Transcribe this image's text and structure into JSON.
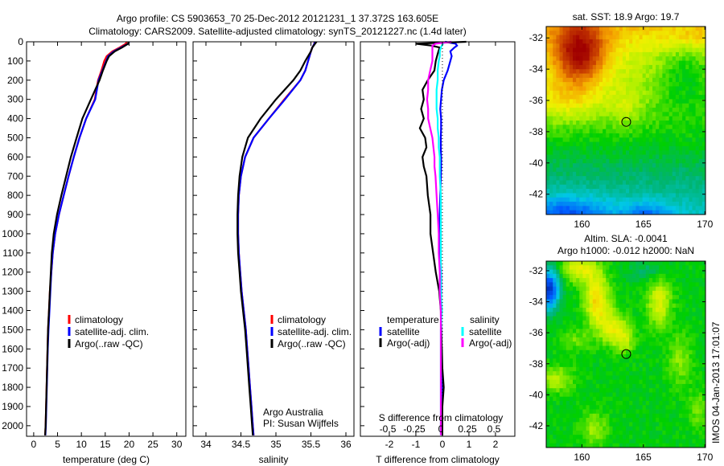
{
  "title": {
    "line1": "Argo profile: CS 5903653_70 25-Dec-2012 20121231_1 37.372S 163.605E",
    "line2": "Climatology: CARS2009. Satellite-adjusted climatology: synTS_20121227.nc (1.4d later)"
  },
  "colors": {
    "climatology": "#ff0000",
    "satellite": "#0000ff",
    "argo": "#000000",
    "sal_satellite": "#00ffff",
    "sal_argo": "#ff00ff"
  },
  "chart_data": [
    {
      "id": "temperature",
      "type": "line",
      "xlabel": "temperature (deg C)",
      "ylabel": "",
      "xlim": [
        -1.5,
        31.9
      ],
      "ylim": [
        2055,
        0
      ],
      "xticks": [
        0,
        5,
        10,
        15,
        20,
        25,
        30
      ],
      "yticks": [
        0,
        100,
        200,
        300,
        400,
        500,
        600,
        700,
        800,
        900,
        1000,
        1100,
        1200,
        1300,
        1400,
        1500,
        1600,
        1700,
        1800,
        1900,
        2000
      ],
      "depth": [
        0,
        10,
        30,
        50,
        75,
        100,
        150,
        200,
        300,
        400,
        500,
        600,
        700,
        800,
        900,
        1000,
        1100,
        1200,
        1300,
        1400,
        1500,
        1600,
        1700,
        1800,
        1900,
        2000,
        2050
      ],
      "series": [
        {
          "name": "climatology",
          "color": "#ff0000",
          "values": [
            19.5,
            19.3,
            18.0,
            16.5,
            15.3,
            14.8,
            14.2,
            13.5,
            12.8,
            11.0,
            9.6,
            8.4,
            7.3,
            6.3,
            5.3,
            4.5,
            4.0,
            3.7,
            3.4,
            3.2,
            3.0,
            2.9,
            2.8,
            2.7,
            2.6,
            2.5,
            2.4
          ]
        },
        {
          "name": "satellite-adj. clim.",
          "color": "#0000ff",
          "values": [
            20.0,
            19.8,
            18.3,
            16.8,
            15.6,
            15.2,
            14.4,
            13.6,
            12.9,
            11.0,
            9.6,
            8.4,
            7.3,
            6.3,
            5.3,
            4.5,
            4.0,
            3.7,
            3.5,
            3.3,
            3.1,
            2.95,
            2.85,
            2.75,
            2.65,
            2.55,
            2.45
          ]
        },
        {
          "name": "Argo(..raw -QC)",
          "color": "#000000",
          "values": [
            19.9,
            19.8,
            18.5,
            17.0,
            15.8,
            15.3,
            14.5,
            13.8,
            12.0,
            10.2,
            9.0,
            7.8,
            6.8,
            5.8,
            4.9,
            4.2,
            3.8,
            3.6,
            3.4,
            3.2,
            3.0,
            2.9,
            2.8,
            2.7,
            2.6,
            2.5,
            2.4
          ]
        }
      ]
    },
    {
      "id": "salinity",
      "type": "line",
      "xlabel": "salinity",
      "xlim": [
        33.816,
        36.115
      ],
      "ylim": [
        2055,
        0
      ],
      "xticks": [
        34,
        34.5,
        35,
        35.5,
        36
      ],
      "depth": [
        0,
        10,
        30,
        50,
        75,
        100,
        150,
        200,
        300,
        400,
        500,
        600,
        700,
        800,
        900,
        1000,
        1100,
        1200,
        1300,
        1400,
        1500,
        1600,
        1700,
        1800,
        1900,
        2000,
        2050
      ],
      "series": [
        {
          "name": "climatology",
          "color": "#ff0000",
          "values": [
            35.55,
            35.55,
            35.52,
            35.5,
            35.48,
            35.46,
            35.42,
            35.35,
            35.12,
            34.9,
            34.68,
            34.56,
            34.5,
            34.47,
            34.46,
            34.46,
            34.47,
            34.49,
            34.51,
            34.54,
            34.57,
            34.59,
            34.61,
            34.63,
            34.65,
            34.67,
            34.68
          ]
        },
        {
          "name": "satellite-adj. clim.",
          "color": "#0000ff",
          "values": [
            35.56,
            35.55,
            35.52,
            35.5,
            35.48,
            35.46,
            35.42,
            35.35,
            35.13,
            34.9,
            34.68,
            34.56,
            34.5,
            34.47,
            34.46,
            34.46,
            34.47,
            34.49,
            34.51,
            34.54,
            34.57,
            34.59,
            34.61,
            34.63,
            34.65,
            34.67,
            34.68
          ]
        },
        {
          "name": "Argo(..raw -QC)",
          "color": "#000000",
          "values": [
            35.58,
            35.56,
            35.52,
            35.5,
            35.46,
            35.42,
            35.35,
            35.25,
            35.0,
            34.78,
            34.6,
            34.52,
            34.48,
            34.46,
            34.45,
            34.45,
            34.46,
            34.48,
            34.5,
            34.53,
            34.56,
            34.58,
            34.6,
            34.62,
            34.64,
            34.66,
            34.67
          ]
        }
      ],
      "annotation": [
        "Argo Australia",
        "PI: Susan Wijffels"
      ]
    },
    {
      "id": "difference",
      "type": "line",
      "xlabel": "T difference from climatology",
      "xlim": [
        -3.09,
        2.73
      ],
      "xticks": [
        -2,
        -1,
        0,
        1,
        2
      ],
      "s_label": "S difference from climatology",
      "s_xlim": [
        -0.758,
        0.697
      ],
      "s_xticks": [
        -0.5,
        -0.25,
        0,
        0.25,
        0.5
      ],
      "s_xticklabels": [
        "-0.5",
        "-0.25",
        "0",
        "0.25",
        "0.5"
      ],
      "ylim": [
        2055,
        0
      ],
      "depth": [
        0,
        10,
        20,
        30,
        50,
        75,
        100,
        150,
        200,
        250,
        300,
        350,
        400,
        450,
        500,
        550,
        600,
        650,
        700,
        800,
        900,
        1000,
        1100,
        1200,
        1300,
        1400,
        1500,
        1600,
        1700,
        1800,
        1900,
        2000,
        2050
      ],
      "legend": {
        "temperature_title": "temperature",
        "salinity_title": "salinity"
      },
      "series": [
        {
          "name": "satellite",
          "group": "temperature",
          "axis": "T",
          "color": "#0000ff",
          "values": [
            0.1,
            0.5,
            0.55,
            0.45,
            0.3,
            0.35,
            0.3,
            0.2,
            0.05,
            -0.02,
            -0.05,
            -0.08,
            -0.05,
            -0.05,
            -0.06,
            -0.06,
            -0.05,
            -0.05,
            -0.06,
            -0.08,
            -0.1,
            -0.1,
            -0.08,
            -0.05,
            -0.05,
            -0.05,
            -0.04,
            -0.03,
            -0.03,
            -0.02,
            -0.02,
            -0.01,
            0
          ]
        },
        {
          "name": "Argo(-adj)",
          "group": "temperature",
          "axis": "T",
          "color": "#000000",
          "values": [
            0.9,
            -1.0,
            -0.4,
            -0.1,
            -0.15,
            -0.2,
            -0.25,
            -0.3,
            -0.55,
            -0.75,
            -0.7,
            -0.8,
            -0.7,
            -0.85,
            -0.65,
            -0.6,
            -0.75,
            -0.7,
            -0.6,
            -0.55,
            -0.45,
            -0.45,
            -0.35,
            -0.25,
            -0.12,
            -0.06,
            -0.05,
            -0.02,
            0.0,
            0.05,
            0.0,
            0.0,
            0.0
          ]
        },
        {
          "name": "satellite",
          "group": "salinity",
          "axis": "S",
          "color": "#00ffff",
          "values": [
            0.01,
            0.02,
            0.01,
            0.0,
            -0.01,
            -0.01,
            -0.02,
            -0.03,
            -0.03,
            -0.04,
            -0.04,
            -0.04,
            -0.03,
            -0.03,
            -0.02,
            -0.02,
            -0.01,
            -0.01,
            -0.01,
            0,
            0,
            0,
            0,
            0,
            0,
            0.01,
            0,
            0,
            0,
            0,
            0,
            0,
            0
          ]
        },
        {
          "name": "Argo(-adj)",
          "group": "salinity",
          "axis": "S",
          "color": "#ff00ff",
          "values": [
            0.1,
            -0.05,
            -0.08,
            -0.08,
            -0.08,
            -0.08,
            -0.08,
            -0.1,
            -0.12,
            -0.12,
            -0.13,
            -0.12,
            -0.12,
            -0.1,
            -0.08,
            -0.07,
            -0.06,
            -0.06,
            -0.05,
            -0.04,
            -0.03,
            -0.02,
            -0.02,
            -0.01,
            -0.01,
            0,
            0,
            0,
            0,
            0,
            0,
            0,
            0
          ]
        }
      ]
    },
    {
      "id": "sst-map",
      "type": "heatmap",
      "title": "sat. SST: 18.9 Argo: 19.7",
      "xlim": [
        157.1,
        170.05
      ],
      "ylim": [
        -43.3,
        -31.27
      ],
      "xticks": [
        160,
        165,
        170
      ],
      "yticks": [
        -32,
        -34,
        -36,
        -38,
        -40,
        -42
      ],
      "float_position": {
        "lon": 163.605,
        "lat": -37.372
      },
      "field_model": {
        "base": 0.5,
        "lat_gradient": 0.035,
        "lat_ref": -38.5,
        "blobs": [
          [
            159.8,
            -33.0,
            0.32,
            1.4,
            1.4
          ],
          [
            158.5,
            -36.0,
            0.1,
            2.2,
            1.0
          ],
          [
            163.5,
            -36.6,
            0.06,
            1.0,
            0.8
          ],
          [
            168.5,
            -34.0,
            -0.15,
            2.0,
            1.8
          ],
          [
            164,
            -33.2,
            -0.03,
            1.5,
            1
          ],
          [
            158.8,
            -43.3,
            -0.2,
            2.2,
            0.8
          ],
          [
            165.2,
            -43.4,
            -0.16,
            1.5,
            0.6
          ],
          [
            169,
            -32,
            0.06,
            1.5,
            0.5
          ]
        ]
      }
    },
    {
      "id": "sla-map",
      "type": "heatmap",
      "title_line1": "Altim. SLA: -0.0041",
      "title_line2": "Argo h1000: -0.012 h2000: NaN",
      "xlim": [
        157.1,
        170.05
      ],
      "ylim": [
        -43.4,
        -31.38
      ],
      "xticks": [
        160,
        165,
        170
      ],
      "yticks": [
        -32,
        -34,
        -36,
        -38,
        -40,
        -42
      ],
      "float_position": {
        "lon": 163.605,
        "lat": -37.372
      },
      "field_model": {
        "base": 0.49,
        "lat_gradient": 0,
        "lat_ref": -38,
        "blobs": [
          [
            161.2,
            -33.8,
            0.22,
            0.7,
            1.2
          ],
          [
            162.5,
            -35.6,
            0.16,
            0.8,
            0.8
          ],
          [
            163.5,
            -36.5,
            0.12,
            0.6,
            0.6
          ],
          [
            166.3,
            -34,
            0.16,
            0.7,
            1.2
          ],
          [
            159.7,
            -31.9,
            0.17,
            1.0,
            0.6
          ],
          [
            158,
            -39,
            0.12,
            1.0,
            0.6
          ],
          [
            157.3,
            -33.2,
            -0.42,
            0.6,
            0.9
          ],
          [
            168,
            -37.8,
            0.09,
            0.7,
            1.2
          ],
          [
            161,
            -42.2,
            0.1,
            0.8,
            0.8
          ],
          [
            165.5,
            -32,
            -0.07,
            1.2,
            0.5
          ],
          [
            159.5,
            -36.5,
            0.07,
            1.0,
            0.5
          ],
          [
            169.5,
            -41,
            0.08,
            0.6,
            0.8
          ]
        ]
      }
    }
  ],
  "legend_profile": [
    "climatology",
    "satellite-adj. clim.",
    "Argo(..raw -QC)"
  ],
  "legend_diff": {
    "temperature": [
      "satellite",
      "Argo(-adj)"
    ],
    "salinity": [
      "satellite",
      "Argo(-adj)"
    ]
  },
  "watermark": "IMOS 04-Jan-2013 17:01:07"
}
